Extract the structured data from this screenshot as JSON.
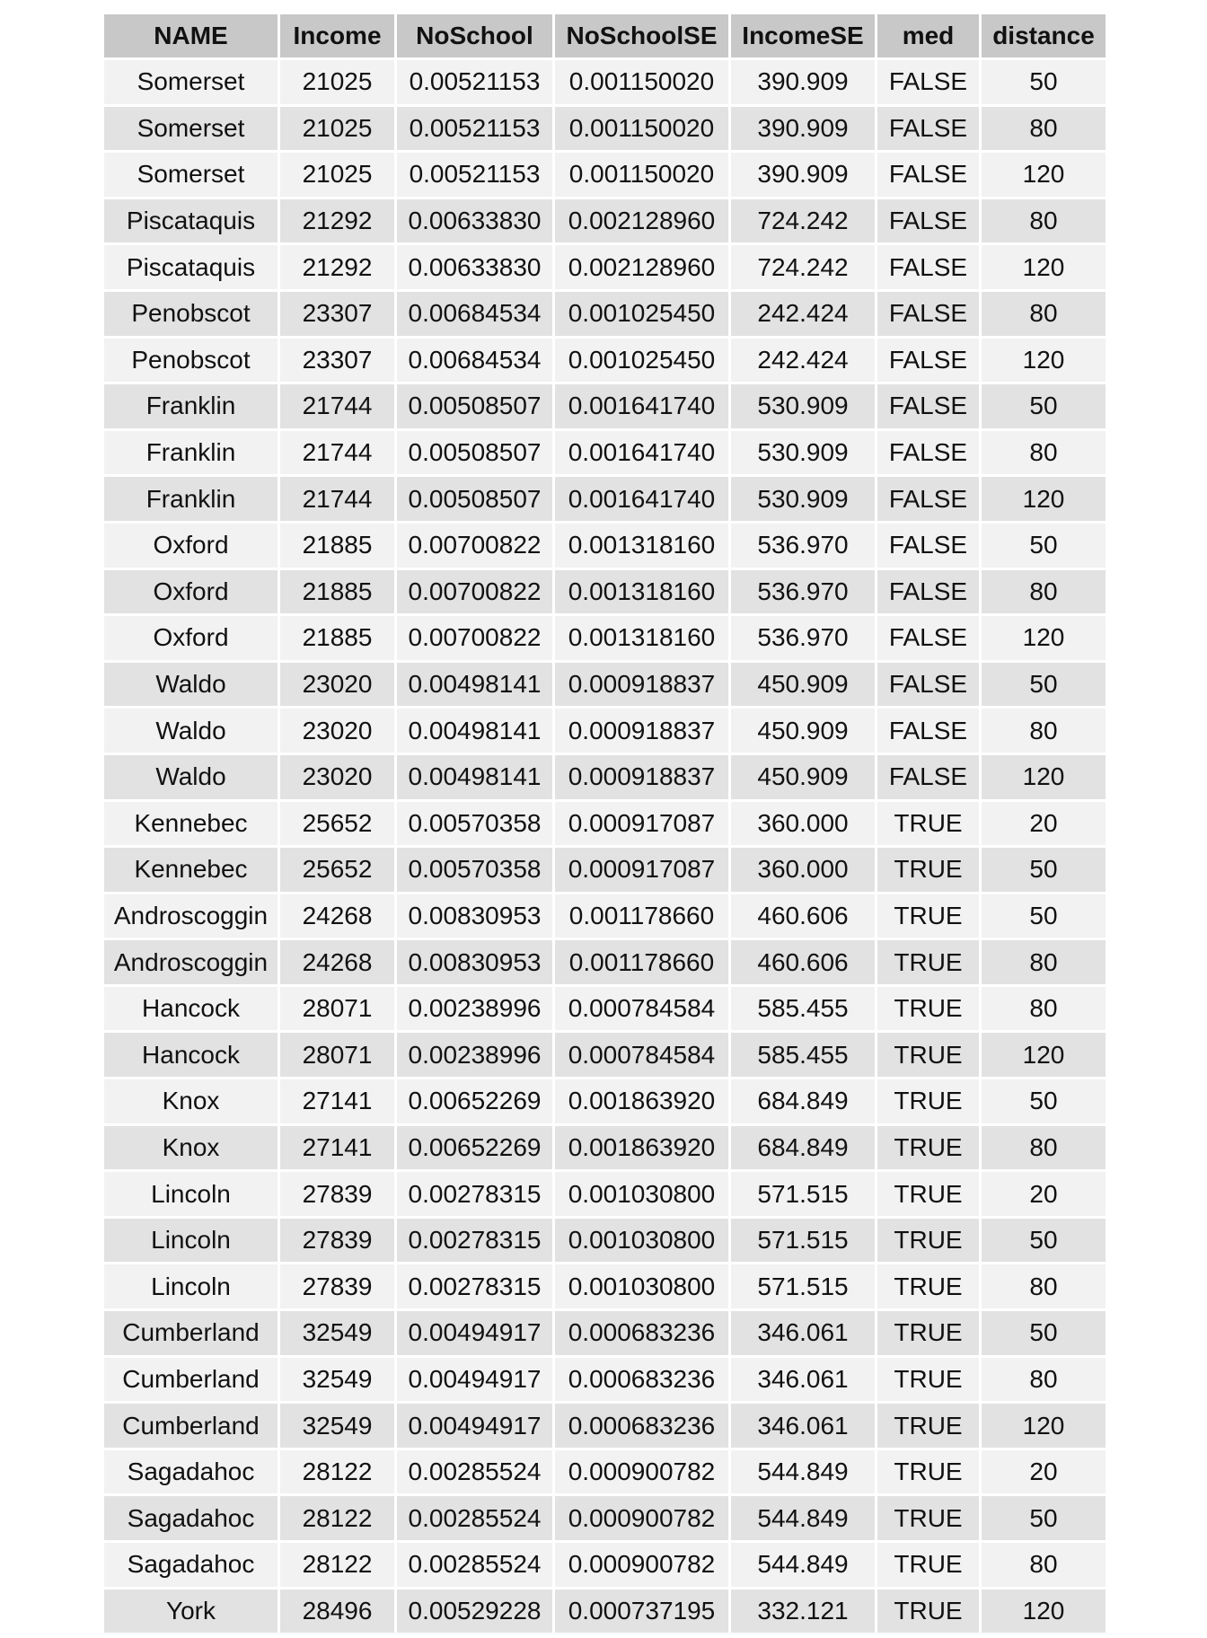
{
  "table": {
    "columns": [
      "NAME",
      "Income",
      "NoSchool",
      "NoSchoolSE",
      "IncomeSE",
      "med",
      "distance"
    ],
    "rows": [
      [
        "Somerset",
        "21025",
        "0.00521153",
        "0.001150020",
        "390.909",
        "FALSE",
        "50"
      ],
      [
        "Somerset",
        "21025",
        "0.00521153",
        "0.001150020",
        "390.909",
        "FALSE",
        "80"
      ],
      [
        "Somerset",
        "21025",
        "0.00521153",
        "0.001150020",
        "390.909",
        "FALSE",
        "120"
      ],
      [
        "Piscataquis",
        "21292",
        "0.00633830",
        "0.002128960",
        "724.242",
        "FALSE",
        "80"
      ],
      [
        "Piscataquis",
        "21292",
        "0.00633830",
        "0.002128960",
        "724.242",
        "FALSE",
        "120"
      ],
      [
        "Penobscot",
        "23307",
        "0.00684534",
        "0.001025450",
        "242.424",
        "FALSE",
        "80"
      ],
      [
        "Penobscot",
        "23307",
        "0.00684534",
        "0.001025450",
        "242.424",
        "FALSE",
        "120"
      ],
      [
        "Franklin",
        "21744",
        "0.00508507",
        "0.001641740",
        "530.909",
        "FALSE",
        "50"
      ],
      [
        "Franklin",
        "21744",
        "0.00508507",
        "0.001641740",
        "530.909",
        "FALSE",
        "80"
      ],
      [
        "Franklin",
        "21744",
        "0.00508507",
        "0.001641740",
        "530.909",
        "FALSE",
        "120"
      ],
      [
        "Oxford",
        "21885",
        "0.00700822",
        "0.001318160",
        "536.970",
        "FALSE",
        "50"
      ],
      [
        "Oxford",
        "21885",
        "0.00700822",
        "0.001318160",
        "536.970",
        "FALSE",
        "80"
      ],
      [
        "Oxford",
        "21885",
        "0.00700822",
        "0.001318160",
        "536.970",
        "FALSE",
        "120"
      ],
      [
        "Waldo",
        "23020",
        "0.00498141",
        "0.000918837",
        "450.909",
        "FALSE",
        "50"
      ],
      [
        "Waldo",
        "23020",
        "0.00498141",
        "0.000918837",
        "450.909",
        "FALSE",
        "80"
      ],
      [
        "Waldo",
        "23020",
        "0.00498141",
        "0.000918837",
        "450.909",
        "FALSE",
        "120"
      ],
      [
        "Kennebec",
        "25652",
        "0.00570358",
        "0.000917087",
        "360.000",
        "TRUE",
        "20"
      ],
      [
        "Kennebec",
        "25652",
        "0.00570358",
        "0.000917087",
        "360.000",
        "TRUE",
        "50"
      ],
      [
        "Androscoggin",
        "24268",
        "0.00830953",
        "0.001178660",
        "460.606",
        "TRUE",
        "50"
      ],
      [
        "Androscoggin",
        "24268",
        "0.00830953",
        "0.001178660",
        "460.606",
        "TRUE",
        "80"
      ],
      [
        "Hancock",
        "28071",
        "0.00238996",
        "0.000784584",
        "585.455",
        "TRUE",
        "80"
      ],
      [
        "Hancock",
        "28071",
        "0.00238996",
        "0.000784584",
        "585.455",
        "TRUE",
        "120"
      ],
      [
        "Knox",
        "27141",
        "0.00652269",
        "0.001863920",
        "684.849",
        "TRUE",
        "50"
      ],
      [
        "Knox",
        "27141",
        "0.00652269",
        "0.001863920",
        "684.849",
        "TRUE",
        "80"
      ],
      [
        "Lincoln",
        "27839",
        "0.00278315",
        "0.001030800",
        "571.515",
        "TRUE",
        "20"
      ],
      [
        "Lincoln",
        "27839",
        "0.00278315",
        "0.001030800",
        "571.515",
        "TRUE",
        "50"
      ],
      [
        "Lincoln",
        "27839",
        "0.00278315",
        "0.001030800",
        "571.515",
        "TRUE",
        "80"
      ],
      [
        "Cumberland",
        "32549",
        "0.00494917",
        "0.000683236",
        "346.061",
        "TRUE",
        "50"
      ],
      [
        "Cumberland",
        "32549",
        "0.00494917",
        "0.000683236",
        "346.061",
        "TRUE",
        "80"
      ],
      [
        "Cumberland",
        "32549",
        "0.00494917",
        "0.000683236",
        "346.061",
        "TRUE",
        "120"
      ],
      [
        "Sagadahoc",
        "28122",
        "0.00285524",
        "0.000900782",
        "544.849",
        "TRUE",
        "20"
      ],
      [
        "Sagadahoc",
        "28122",
        "0.00285524",
        "0.000900782",
        "544.849",
        "TRUE",
        "50"
      ],
      [
        "Sagadahoc",
        "28122",
        "0.00285524",
        "0.000900782",
        "544.849",
        "TRUE",
        "80"
      ],
      [
        "York",
        "28496",
        "0.00529228",
        "0.000737195",
        "332.121",
        "TRUE",
        "120"
      ]
    ]
  }
}
